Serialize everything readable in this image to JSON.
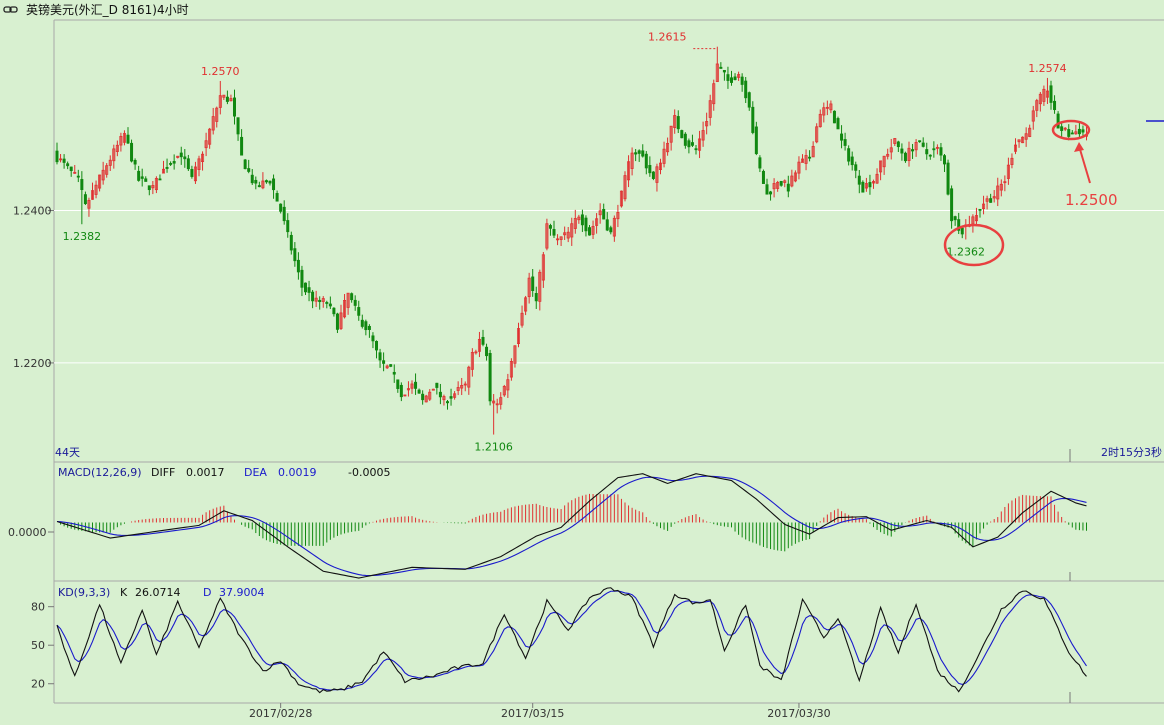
{
  "window": {
    "title": "英镑美元(外汇_D 8161)4小时",
    "title_icon": "chain-link-icon"
  },
  "colors": {
    "background": "#d8f0d0",
    "up": "#e03030",
    "down": "#118811",
    "axis_text": "#333333",
    "grid": "#ffffff",
    "line_black": "#111111",
    "line_blue": "#1a1acc",
    "annotation": "#e84040",
    "info_label": "#1a1a99"
  },
  "price_panel": {
    "corner_left": "44天",
    "corner_right": "2时15分3秒",
    "price_labels": [
      {
        "text": "1.2570",
        "color": "red"
      },
      {
        "text": "1.2382",
        "color": "green"
      },
      {
        "text": "1.2106",
        "color": "green"
      },
      {
        "text": "1.2615",
        "color": "red"
      },
      {
        "text": "1.2362",
        "color": "green"
      },
      {
        "text": "1.2574",
        "color": "red"
      }
    ],
    "annotation_text": "1.2500"
  },
  "macd_panel": {
    "label": "MACD(12,26,9)",
    "diff_label": "DIFF",
    "diff_value": "0.0017",
    "dea_label": "DEA",
    "dea_value": "0.0019",
    "macd_value": "-0.0005",
    "axis_tick": "0.0000"
  },
  "kd_panel": {
    "label": "KD(9,3,3)",
    "k_label": "K",
    "k_value": "26.0714",
    "d_label": "D",
    "d_value": "37.9004",
    "axis_ticks": [
      "80",
      "50",
      "20"
    ]
  },
  "chart_data": [
    {
      "type": "candlestick",
      "ylim": [
        1.207,
        1.265
      ],
      "y_ticks": [
        "1.2400",
        "1.2200"
      ],
      "x_tick_labels": [
        "2017/02/28",
        "2017/03/15",
        "2017/03/30"
      ],
      "anchors": [
        [
          0,
          1.247
        ],
        [
          6,
          1.244
        ],
        [
          8,
          1.2405
        ],
        [
          14,
          1.246
        ],
        [
          19,
          1.25
        ],
        [
          23,
          1.244
        ],
        [
          27,
          1.243
        ],
        [
          31,
          1.246
        ],
        [
          35,
          1.2475
        ],
        [
          38,
          1.244
        ],
        [
          42,
          1.249
        ],
        [
          46,
          1.255
        ],
        [
          49,
          1.2545
        ],
        [
          52,
          1.247
        ],
        [
          56,
          1.243
        ],
        [
          60,
          1.244
        ],
        [
          63,
          1.24
        ],
        [
          66,
          1.235
        ],
        [
          69,
          1.23
        ],
        [
          73,
          1.228
        ],
        [
          76,
          1.228
        ],
        [
          79,
          1.225
        ],
        [
          82,
          1.229
        ],
        [
          85,
          1.226
        ],
        [
          88,
          1.224
        ],
        [
          91,
          1.22
        ],
        [
          94,
          1.219
        ],
        [
          97,
          1.216
        ],
        [
          100,
          1.217
        ],
        [
          103,
          1.215
        ],
        [
          106,
          1.217
        ],
        [
          109,
          1.215
        ],
        [
          112,
          1.216
        ],
        [
          115,
          1.217
        ],
        [
          117,
          1.221
        ],
        [
          119,
          1.223
        ],
        [
          121,
          1.221
        ],
        [
          122,
          1.215
        ],
        [
          124,
          1.2145
        ],
        [
          127,
          1.218
        ],
        [
          130,
          1.225
        ],
        [
          133,
          1.231
        ],
        [
          135,
          1.228
        ],
        [
          138,
          1.238
        ],
        [
          141,
          1.236
        ],
        [
          144,
          1.237
        ],
        [
          147,
          1.2395
        ],
        [
          150,
          1.237
        ],
        [
          153,
          1.24
        ],
        [
          156,
          1.237
        ],
        [
          159,
          1.242
        ],
        [
          162,
          1.248
        ],
        [
          165,
          1.247
        ],
        [
          168,
          1.244
        ],
        [
          171,
          1.248
        ],
        [
          174,
          1.252
        ],
        [
          177,
          1.249
        ],
        [
          180,
          1.248
        ],
        [
          183,
          1.252
        ],
        [
          186,
          1.259
        ],
        [
          189,
          1.257
        ],
        [
          192,
          1.258
        ],
        [
          195,
          1.254
        ],
        [
          197,
          1.247
        ],
        [
          200,
          1.242
        ],
        [
          203,
          1.244
        ],
        [
          206,
          1.243
        ],
        [
          209,
          1.246
        ],
        [
          212,
          1.247
        ],
        [
          215,
          1.253
        ],
        [
          218,
          1.2535
        ],
        [
          221,
          1.249
        ],
        [
          224,
          1.246
        ],
        [
          227,
          1.243
        ],
        [
          230,
          1.244
        ],
        [
          233,
          1.247
        ],
        [
          236,
          1.249
        ],
        [
          239,
          1.247
        ],
        [
          242,
          1.249
        ],
        [
          245,
          1.2475
        ],
        [
          248,
          1.248
        ],
        [
          250,
          1.246
        ],
        [
          252,
          1.239
        ],
        [
          255,
          1.2375
        ],
        [
          258,
          1.239
        ],
        [
          261,
          1.241
        ],
        [
          264,
          1.242
        ],
        [
          267,
          1.244
        ],
        [
          270,
          1.249
        ],
        [
          273,
          1.25
        ],
        [
          276,
          1.254
        ],
        [
          279,
          1.256
        ],
        [
          282,
          1.251
        ],
        [
          285,
          1.25
        ],
        [
          288,
          1.2505
        ],
        [
          290,
          1.25
        ]
      ],
      "markers": [
        {
          "bar": 46,
          "high": 1.257
        },
        {
          "bar": 7,
          "low": 1.2382
        },
        {
          "bar": 123,
          "low": 1.2106
        },
        {
          "bar": 186,
          "high": 1.2615
        },
        {
          "bar": 256,
          "low": 1.2362
        },
        {
          "bar": 279,
          "high": 1.2574
        }
      ]
    },
    {
      "type": "line+bar",
      "name": "MACD(12,26,9)",
      "ylim": [
        -0.006,
        0.0062
      ],
      "anchors": [
        [
          0,
          0.0001
        ],
        [
          15,
          -0.0016
        ],
        [
          30,
          -0.0008
        ],
        [
          40,
          -0.0003
        ],
        [
          47,
          0.0012
        ],
        [
          55,
          0.0002
        ],
        [
          65,
          -0.0025
        ],
        [
          75,
          -0.005
        ],
        [
          85,
          -0.0057
        ],
        [
          100,
          -0.0046
        ],
        [
          115,
          -0.0048
        ],
        [
          125,
          -0.0035
        ],
        [
          135,
          -0.0014
        ],
        [
          142,
          -0.0005
        ],
        [
          150,
          0.0022
        ],
        [
          158,
          0.0046
        ],
        [
          165,
          0.005
        ],
        [
          172,
          0.004
        ],
        [
          180,
          0.005
        ],
        [
          190,
          0.0043
        ],
        [
          197,
          0.0024
        ],
        [
          205,
          -0.0002
        ],
        [
          212,
          -0.0012
        ],
        [
          220,
          0.0005
        ],
        [
          228,
          0.0006
        ],
        [
          235,
          -0.0008
        ],
        [
          245,
          0.0002
        ],
        [
          252,
          -0.0005
        ],
        [
          258,
          -0.0025
        ],
        [
          265,
          -0.0015
        ],
        [
          272,
          0.001
        ],
        [
          280,
          0.0032
        ],
        [
          287,
          0.002
        ],
        [
          290,
          0.0017
        ]
      ]
    },
    {
      "type": "line",
      "name": "KD(9,3,3)",
      "ylim": [
        5,
        100
      ],
      "anchors": [
        [
          0,
          65
        ],
        [
          5,
          25
        ],
        [
          12,
          82
        ],
        [
          18,
          35
        ],
        [
          24,
          78
        ],
        [
          28,
          42
        ],
        [
          34,
          84
        ],
        [
          40,
          48
        ],
        [
          46,
          86
        ],
        [
          52,
          55
        ],
        [
          58,
          30
        ],
        [
          63,
          38
        ],
        [
          68,
          20
        ],
        [
          74,
          14
        ],
        [
          80,
          15
        ],
        [
          86,
          22
        ],
        [
          92,
          45
        ],
        [
          98,
          22
        ],
        [
          106,
          26
        ],
        [
          112,
          32
        ],
        [
          120,
          36
        ],
        [
          126,
          75
        ],
        [
          132,
          40
        ],
        [
          138,
          84
        ],
        [
          144,
          62
        ],
        [
          150,
          87
        ],
        [
          156,
          95
        ],
        [
          162,
          87
        ],
        [
          168,
          50
        ],
        [
          174,
          90
        ],
        [
          180,
          82
        ],
        [
          184,
          86
        ],
        [
          188,
          46
        ],
        [
          194,
          82
        ],
        [
          198,
          34
        ],
        [
          204,
          22
        ],
        [
          210,
          85
        ],
        [
          216,
          56
        ],
        [
          220,
          72
        ],
        [
          226,
          22
        ],
        [
          232,
          78
        ],
        [
          237,
          44
        ],
        [
          242,
          83
        ],
        [
          248,
          30
        ],
        [
          254,
          14
        ],
        [
          260,
          44
        ],
        [
          266,
          78
        ],
        [
          272,
          93
        ],
        [
          278,
          86
        ],
        [
          285,
          45
        ],
        [
          290,
          26
        ]
      ]
    }
  ]
}
